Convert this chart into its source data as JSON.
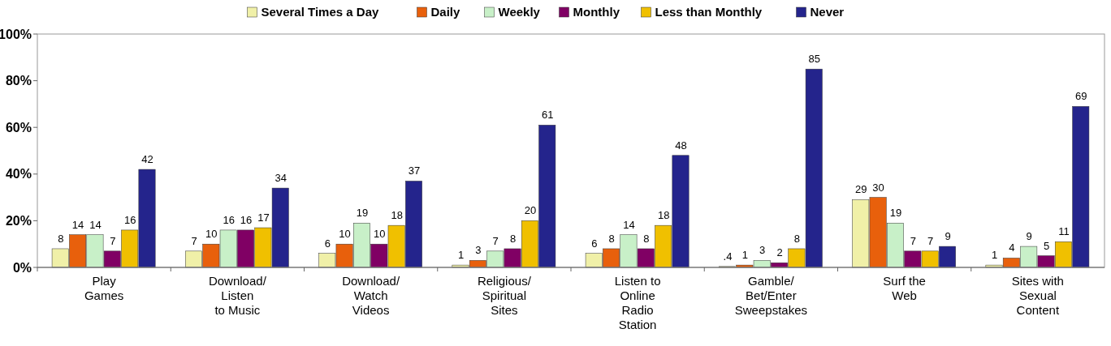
{
  "chart_data": {
    "type": "bar",
    "categories": [
      "Play\nGames",
      "Download/\nListen\nto Music",
      "Download/\nWatch\nVideos",
      "Religious/\nSpiritual\nSites",
      "Listen to\nOnline\nRadio\nStation",
      "Gamble/\nBet/Enter\nSweepstakes",
      "Surf the\nWeb",
      "Sites with\nSexual\nContent"
    ],
    "series": [
      {
        "name": "Several Times a Day",
        "color": "#f0f0a8",
        "values": [
          8,
          7,
          6,
          1,
          6,
          0.4,
          29,
          1
        ],
        "value_labels": [
          "8",
          "7",
          "6",
          "1",
          "6",
          ".4",
          "29",
          "1"
        ]
      },
      {
        "name": "Daily",
        "color": "#e8600c",
        "values": [
          14,
          10,
          10,
          3,
          8,
          1,
          30,
          4
        ],
        "value_labels": [
          "14",
          "10",
          "10",
          "3",
          "8",
          "1",
          "30",
          "4"
        ]
      },
      {
        "name": "Weekly",
        "color": "#c8f0c8",
        "values": [
          14,
          16,
          19,
          7,
          14,
          3,
          19,
          9
        ],
        "value_labels": [
          "14",
          "16",
          "19",
          "7",
          "14",
          "3",
          "19",
          "9"
        ]
      },
      {
        "name": "Monthly",
        "color": "#800064",
        "values": [
          7,
          16,
          10,
          8,
          8,
          2,
          7,
          5
        ],
        "value_labels": [
          "7",
          "16",
          "10",
          "8",
          "8",
          "2",
          "7",
          "5"
        ]
      },
      {
        "name": "Less than Monthly",
        "color": "#f0c000",
        "values": [
          16,
          17,
          18,
          20,
          18,
          8,
          7,
          11
        ],
        "value_labels": [
          "16",
          "17",
          "18",
          "20",
          "18",
          "8",
          "7",
          "11"
        ]
      },
      {
        "name": "Never",
        "color": "#24248c",
        "values": [
          42,
          34,
          37,
          61,
          48,
          85,
          9,
          69
        ],
        "value_labels": [
          "42",
          "34",
          "37",
          "61",
          "48",
          "85",
          "9",
          "69"
        ]
      }
    ],
    "ylim": [
      0,
      100
    ],
    "yticks": [
      {
        "value": 0,
        "label": "0%"
      },
      {
        "value": 20,
        "label": "20%"
      },
      {
        "value": 40,
        "label": "40%"
      },
      {
        "value": 60,
        "label": "60%"
      },
      {
        "value": 80,
        "label": "80%"
      },
      {
        "value": 100,
        "label": "100%"
      }
    ],
    "grid": false,
    "legend": "top"
  }
}
